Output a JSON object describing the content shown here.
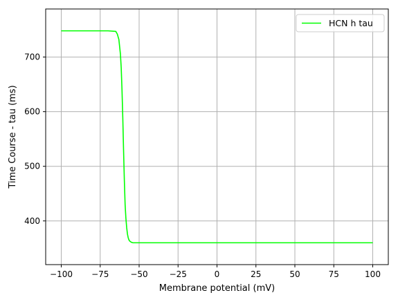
{
  "chart_data": {
    "type": "line",
    "title": "",
    "xlabel": "Membrane potential (mV)",
    "ylabel": "Time Course - tau (ms)",
    "xlim": [
      -110,
      110
    ],
    "ylim": [
      320,
      788
    ],
    "xticks": [
      -100,
      -75,
      -50,
      -25,
      0,
      25,
      50,
      75,
      100
    ],
    "xtick_labels": [
      "−100",
      "−75",
      "−50",
      "−25",
      "0",
      "25",
      "50",
      "75",
      "100"
    ],
    "yticks": [
      400,
      500,
      600,
      700
    ],
    "ytick_labels": [
      "400",
      "500",
      "600",
      "700"
    ],
    "grid": true,
    "legend_position": "top-right",
    "series": [
      {
        "name": "HCN h tau",
        "color": "#00ff00",
        "x": [
          -100,
          -90,
          -80,
          -70,
          -65,
          -64,
          -63,
          -62,
          -61.5,
          -61,
          -60.5,
          -60,
          -59.5,
          -59,
          -58.5,
          -58,
          -57.5,
          -57,
          -56.5,
          -56,
          -55.5,
          -55,
          -54,
          -53,
          -50,
          -40,
          -25,
          0,
          25,
          50,
          75,
          100
        ],
        "y": [
          748,
          748,
          748,
          748,
          747,
          742,
          732,
          705,
          680,
          640,
          590,
          530,
          475,
          430,
          405,
          388,
          376,
          369,
          365,
          363,
          362,
          361,
          360,
          360,
          360,
          360,
          360,
          360,
          360,
          360,
          360,
          360
        ]
      }
    ]
  }
}
